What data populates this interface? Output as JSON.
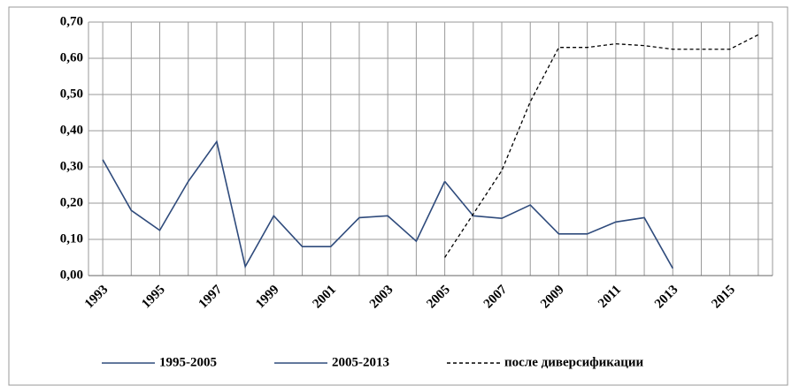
{
  "chart_data": {
    "type": "line",
    "categories": [
      "1993",
      null,
      "1995",
      null,
      "1997",
      null,
      "1999",
      null,
      "2001",
      null,
      "2003",
      null,
      "2005",
      null,
      "2007",
      null,
      "2009",
      null,
      "2011",
      null,
      "2013",
      null,
      "2015",
      null
    ],
    "series": [
      {
        "name": "1995-2005",
        "color": "#2f4b7c",
        "style": "solid",
        "values": [
          0.32,
          0.18,
          0.125,
          0.26,
          0.37,
          0.025,
          0.165,
          0.08,
          0.08,
          0.16,
          0.165,
          0.095,
          0.26,
          null,
          null,
          null,
          null,
          null,
          null,
          null,
          null,
          null,
          null,
          null
        ]
      },
      {
        "name": "2005-2013",
        "color": "#2f4b7c",
        "style": "solid",
        "values": [
          null,
          null,
          null,
          null,
          null,
          null,
          null,
          null,
          null,
          null,
          null,
          null,
          0.26,
          0.165,
          0.158,
          0.195,
          0.115,
          0.115,
          0.148,
          0.16,
          0.02,
          null,
          null,
          null
        ]
      },
      {
        "name": "после диверсификации",
        "color": "#000000",
        "style": "dashed",
        "values": [
          null,
          null,
          null,
          null,
          null,
          null,
          null,
          null,
          null,
          null,
          null,
          null,
          0.05,
          0.17,
          0.29,
          0.48,
          0.63,
          0.63,
          0.64,
          0.635,
          0.625,
          0.625,
          0.625,
          0.665
        ]
      }
    ],
    "ylim": [
      0,
      0.7
    ],
    "yticks": [
      {
        "value": 0,
        "label": "0,00"
      },
      {
        "value": 0.1,
        "label": "0,10"
      },
      {
        "value": 0.2,
        "label": "0,20"
      },
      {
        "value": 0.3,
        "label": "0,30"
      },
      {
        "value": 0.4,
        "label": "0,40"
      },
      {
        "value": 0.5,
        "label": "0,50"
      },
      {
        "value": 0.6,
        "label": "0,60"
      },
      {
        "value": 0.7,
        "label": "0,70"
      }
    ],
    "grid": true
  }
}
